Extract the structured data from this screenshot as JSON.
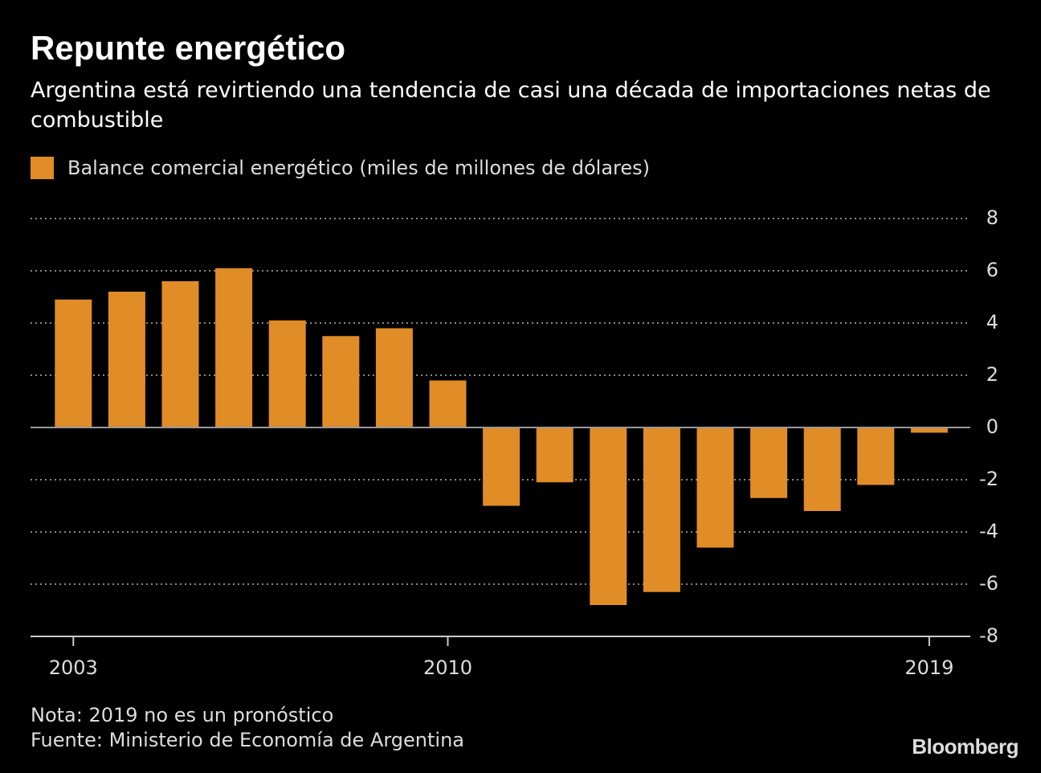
{
  "chart_data": {
    "type": "bar",
    "title": "Repunte energético",
    "subtitle": "Argentina está revirtiendo una tendencia de casi una década de importaciones netas de combustible",
    "categories": [
      "2003",
      null,
      null,
      null,
      null,
      null,
      null,
      "2010",
      null,
      null,
      null,
      null,
      null,
      null,
      null,
      null,
      "2019"
    ],
    "series": [
      {
        "name": "Balance comercial energético (miles de millones de dólares)",
        "color": "#e08c27",
        "values": [
          4.9,
          5.2,
          5.6,
          6.1,
          4.1,
          3.5,
          3.8,
          1.8,
          -3.0,
          -2.1,
          -6.8,
          -6.3,
          -4.6,
          -2.7,
          -3.2,
          -2.2,
          -0.2
        ]
      }
    ],
    "ylim": [
      -8,
      8
    ],
    "yticks": [
      8,
      6,
      4,
      2,
      0,
      -2,
      -4,
      -6,
      -8
    ],
    "grid": true,
    "note": "Nota: 2019 no es un pronóstico",
    "source": "Fuente: Ministerio de Economía de Argentina",
    "brand": "Bloomberg"
  }
}
